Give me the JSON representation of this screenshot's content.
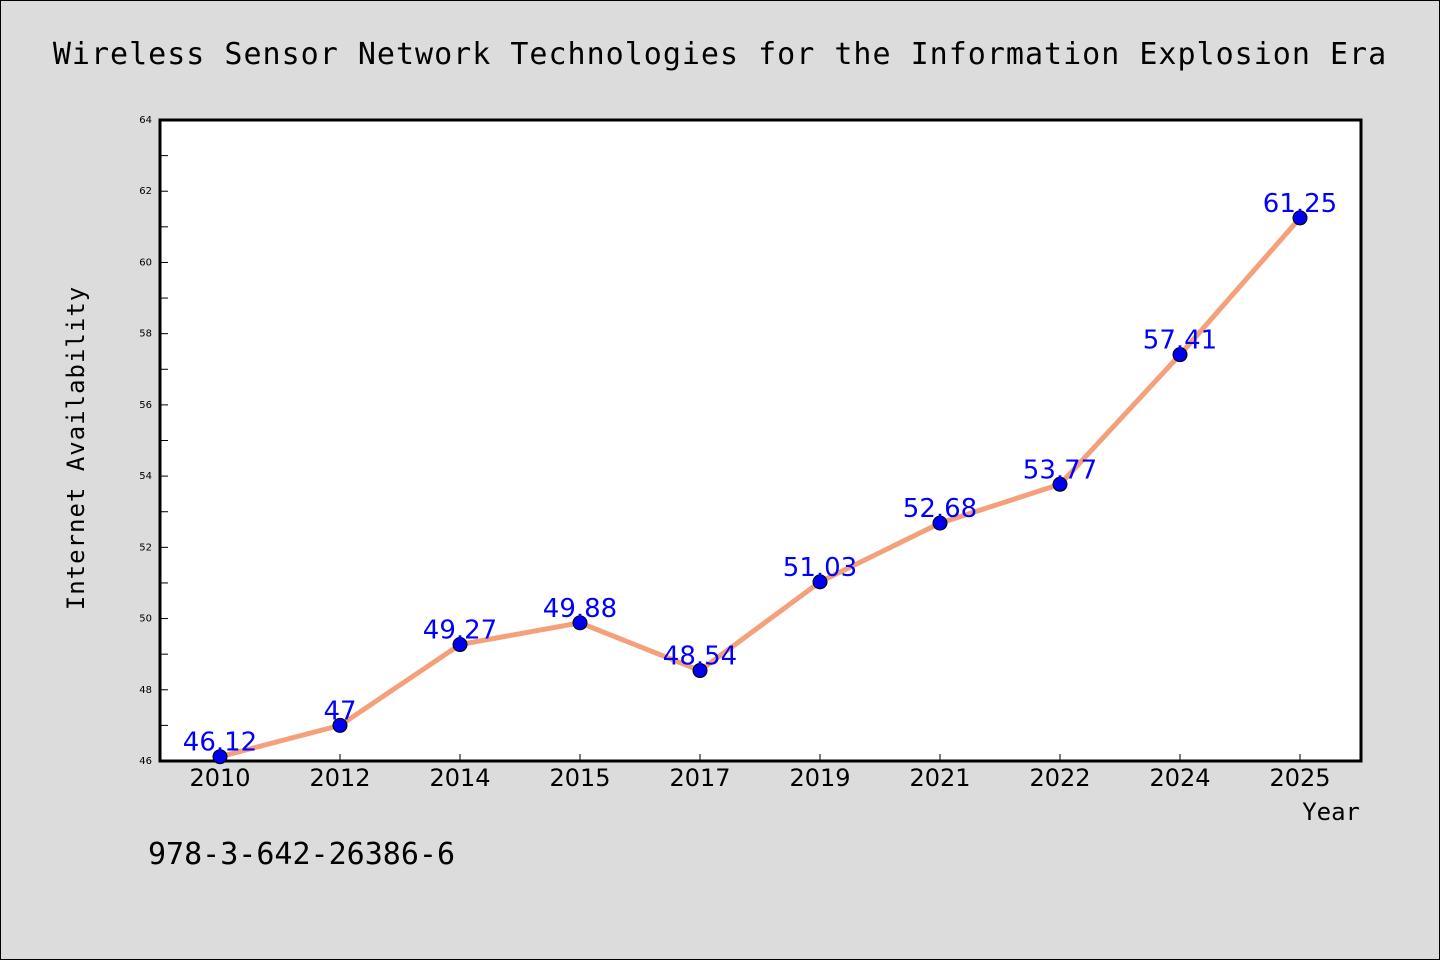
{
  "chart_data": {
    "type": "line",
    "title": "Wireless Sensor Network Technologies for the Information Explosion Era",
    "xlabel": "Year",
    "ylabel": "Internet Availability",
    "categories": [
      "2010",
      "2012",
      "2014",
      "2015",
      "2017",
      "2019",
      "2021",
      "2022",
      "2024",
      "2025"
    ],
    "series": [
      {
        "values": [
          46.12,
          47,
          49.27,
          49.88,
          48.54,
          51.03,
          52.68,
          53.77,
          57.41,
          61.25
        ],
        "labels": [
          "46.12",
          "47",
          "49.27",
          "49.88",
          "48.54",
          "51.03",
          "52.68",
          "53.77",
          "57.41",
          "61.25"
        ]
      }
    ],
    "ylim": [
      46,
      64
    ],
    "yticks": [
      "46",
      "48",
      "50",
      "52",
      "54",
      "56",
      "58",
      "60",
      "62",
      "64"
    ],
    "grid": false,
    "line_color": "#f4a07a",
    "marker_color": "#0000ee",
    "label_color": "#0000ff"
  },
  "footer": {
    "isbn": "978-3-642-26386-6"
  }
}
